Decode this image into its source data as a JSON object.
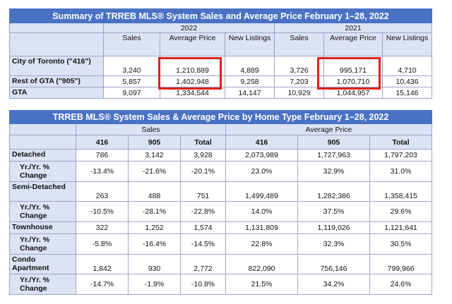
{
  "summary": {
    "title": "Summary of TRREB MLS® System Sales and Average Price February 1–28, 2022",
    "years": [
      "2022",
      "2021"
    ],
    "columns": [
      "Sales",
      "Average Price",
      "New Listings",
      "Sales",
      "Average Price",
      "New Listings"
    ],
    "rows": [
      {
        "label": "City of Toronto (\"416\")",
        "values": [
          "3,240",
          "1,210,889",
          "4,889",
          "3,726",
          "995,171",
          "4,710"
        ]
      },
      {
        "label": "Rest of GTA (\"905\")",
        "values": [
          "5,857",
          "1,402,948",
          "9,258",
          "7,203",
          "1,070,710",
          "10,436"
        ]
      },
      {
        "label": "GTA",
        "values": [
          "9,097",
          "1,334,544",
          "14,147",
          "10,929",
          "1,044,957",
          "15,146"
        ]
      }
    ]
  },
  "hometype": {
    "title": "TRREB MLS® System Sales & Average Price by Home Type February 1–28, 2022",
    "groups": [
      "Sales",
      "Average Price"
    ],
    "columns": [
      "416",
      "905",
      "Total",
      "416",
      "905",
      "Total"
    ],
    "rows": [
      {
        "label": "Detached",
        "values": [
          "786",
          "3,142",
          "3,928",
          "2,073,989",
          "1,727,963",
          "1,797,203"
        ]
      },
      {
        "label": "Yr./Yr. % Change",
        "values": [
          "-13.4%",
          "-21.6%",
          "-20.1%",
          "23.0%",
          "32.9%",
          "31.0%"
        ]
      },
      {
        "label": "Semi-Detached",
        "values": [
          "263",
          "488",
          "751",
          "1,499,489",
          "1,282,386",
          "1,358,415"
        ]
      },
      {
        "label": "Yr./Yr. % Change",
        "values": [
          "-10.5%",
          "-28.1%",
          "-22.8%",
          "14.0%",
          "37.5%",
          "29.6%"
        ]
      },
      {
        "label": "Townhouse",
        "values": [
          "322",
          "1,252",
          "1,574",
          "1,131,809",
          "1,119,026",
          "1,121,641"
        ]
      },
      {
        "label": "Yr./Yr. % Change",
        "values": [
          "-5.8%",
          "-16.4%",
          "-14.5%",
          "22.8%",
          "32.3%",
          "30.5%"
        ]
      },
      {
        "label": "Condo Apartment",
        "values": [
          "1,842",
          "930",
          "2,772",
          "822,090",
          "756,146",
          "799,966"
        ]
      },
      {
        "label": "Yr./Yr. % Change",
        "values": [
          "-14.7%",
          "-1.9%",
          "-10.8%",
          "21.5%",
          "34.2%",
          "24.6%"
        ]
      }
    ]
  },
  "highlight_color": "#e0201c"
}
